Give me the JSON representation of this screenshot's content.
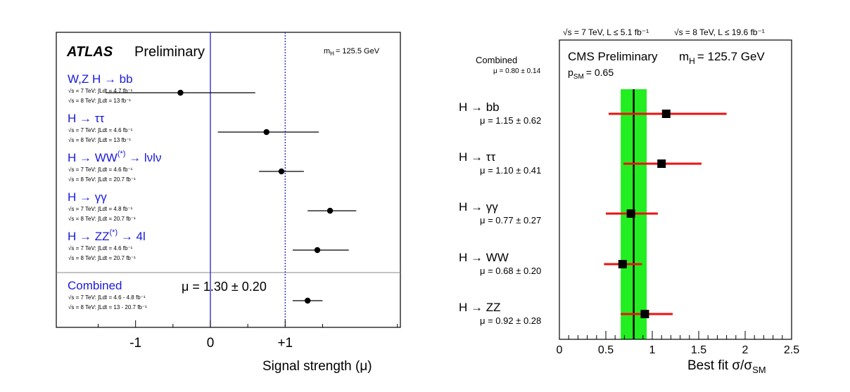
{
  "chart_data": [
    {
      "type": "scatter",
      "title": "ATLAS Preliminary",
      "title_bold": "ATLAS",
      "title_rest": "Preliminary",
      "mass_label": "m",
      "mass_sub": "H",
      "mass_value": "= 125.5 GeV",
      "xlabel": "Signal strength (μ)",
      "xlim": [
        -2.06,
        2.54
      ],
      "ticks": [
        {
          "value": -1,
          "label": "-1"
        },
        {
          "value": 0,
          "label": "0"
        },
        {
          "value": 1,
          "label": "+1"
        }
      ],
      "reference_lines": [
        {
          "value": 0,
          "style": "solid",
          "color": "#2222cc"
        },
        {
          "value": 1,
          "style": "dotted",
          "color": "#2222cc"
        }
      ],
      "channels": [
        {
          "name": "W,Z H → bb",
          "sup": "",
          "lumi": [
            "√s = 7 TeV: ∫Ldt = 4.7 fb⁻¹",
            "√s = 8 TeV: ∫Ldt = 13 fb⁻¹"
          ],
          "mu": -0.4,
          "lo": -1.4,
          "hi": 0.6
        },
        {
          "name": "H → ττ",
          "sup": "",
          "lumi": [
            "√s = 7 TeV: ∫Ldt = 4.6 fb⁻¹",
            "√s = 8 TeV: ∫Ldt = 13 fb⁻¹"
          ],
          "mu": 0.75,
          "lo": 0.1,
          "hi": 1.45
        },
        {
          "name": "H → WW",
          "sup": "(*)",
          "tail": " → lνlν",
          "lumi": [
            "√s = 7 TeV: ∫Ldt = 4.6 fb⁻¹",
            "√s = 8 TeV: ∫Ldt = 20.7 fb⁻¹"
          ],
          "mu": 0.95,
          "lo": 0.65,
          "hi": 1.25
        },
        {
          "name": "H → γγ",
          "sup": "",
          "lumi": [
            "√s = 7 TeV: ∫Ldt = 4.8 fb⁻¹",
            "√s = 8 TeV: ∫Ldt = 20.7 fb⁻¹"
          ],
          "mu": 1.6,
          "lo": 1.3,
          "hi": 1.95
        },
        {
          "name": "H → ZZ",
          "sup": "(*)",
          "tail": " → 4l",
          "lumi": [
            "√s = 7 TeV: ∫Ldt = 4.6 fb⁻¹",
            "√s = 8 TeV: ∫Ldt = 20.7 fb⁻¹"
          ],
          "mu": 1.43,
          "lo": 1.1,
          "hi": 1.85
        }
      ],
      "combined": {
        "name": "Combined",
        "result": "μ = 1.30 ± 0.20",
        "lumi": [
          "√s = 7 TeV: ∫Ldt = 4.6 - 4.8 fb⁻¹",
          "√s = 8 TeV: ∫Ldt = 13 - 20.7 fb⁻¹"
        ],
        "mu": 1.3,
        "lo": 1.1,
        "hi": 1.5
      }
    },
    {
      "type": "scatter",
      "header_left": "√s = 7 TeV, L ≤ 5.1 fb⁻¹",
      "header_right": "√s = 8 TeV, L ≤ 19.6 fb⁻¹",
      "title": "CMS Preliminary",
      "mass_label": "m",
      "mass_sub": "H",
      "mass_value": "= 125.7 GeV",
      "psm_label": "p",
      "psm_sub": "SM",
      "psm_value": "= 0.65",
      "xlabel_main": "Best fit σ/σ",
      "xlabel_sub": "SM",
      "xlim": [
        0,
        2.5
      ],
      "ticks": [
        {
          "value": 0,
          "label": "0"
        },
        {
          "value": 0.5,
          "label": "0.5"
        },
        {
          "value": 1,
          "label": "1"
        },
        {
          "value": 1.5,
          "label": "1.5"
        },
        {
          "value": 2,
          "label": "2"
        },
        {
          "value": 2.5,
          "label": "2.5"
        }
      ],
      "combined": {
        "name": "Combined",
        "result": "μ = 0.80 ± 0.14",
        "mu": 0.8,
        "band": [
          0.66,
          0.94
        ]
      },
      "channels": [
        {
          "name": "H → bb",
          "result": "μ = 1.15 ± 0.62",
          "mu": 1.15,
          "lo": 0.53,
          "hi": 1.8
        },
        {
          "name": "H → ττ",
          "result": "μ = 1.10 ± 0.41",
          "mu": 1.1,
          "lo": 0.69,
          "hi": 1.53
        },
        {
          "name": "H → γγ",
          "result": "μ = 0.77 ± 0.27",
          "mu": 0.77,
          "lo": 0.5,
          "hi": 1.06
        },
        {
          "name": "H → WW",
          "result": "μ = 0.68 ± 0.20",
          "mu": 0.68,
          "lo": 0.48,
          "hi": 0.89
        },
        {
          "name": "H → ZZ",
          "result": "μ = 0.92 ± 0.28",
          "mu": 0.92,
          "lo": 0.66,
          "hi": 1.22
        }
      ],
      "colors": {
        "band": "#22ee22",
        "error": "#ee1111",
        "marker": "#000000"
      }
    }
  ]
}
